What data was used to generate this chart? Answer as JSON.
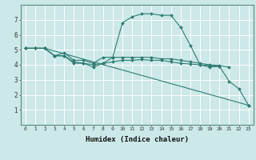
{
  "xlabel": "Humidex (Indice chaleur)",
  "bg_color": "#cce8e8",
  "plot_bg_color": "#cce8e8",
  "grid_color": "#ffffff",
  "line_color": "#2e7d72",
  "spine_color": "#5a8a80",
  "xlim": [
    -0.5,
    23.5
  ],
  "ylim": [
    0,
    8
  ],
  "xticks": [
    0,
    1,
    2,
    3,
    4,
    5,
    6,
    7,
    8,
    9,
    10,
    11,
    12,
    13,
    14,
    15,
    16,
    17,
    18,
    19,
    20,
    21,
    22,
    23
  ],
  "yticks": [
    1,
    2,
    3,
    4,
    5,
    6,
    7
  ],
  "line_configs": [
    {
      "x": [
        0,
        1,
        2,
        3,
        4,
        5,
        6,
        7,
        8,
        9,
        10,
        11,
        12,
        13,
        14,
        15,
        16,
        17,
        18,
        19,
        20,
        21,
        22,
        23
      ],
      "y": [
        5.1,
        5.1,
        5.1,
        4.6,
        4.6,
        4.1,
        4.1,
        3.85,
        4.1,
        4.5,
        6.8,
        7.2,
        7.4,
        7.4,
        7.3,
        7.3,
        6.5,
        5.3,
        4.0,
        3.85,
        3.9,
        2.9,
        2.4,
        1.3
      ]
    },
    {
      "x": [
        0,
        1,
        2,
        3,
        4,
        5,
        6,
        7,
        8,
        9,
        10,
        11,
        12,
        13,
        14,
        15,
        16,
        17,
        18,
        19,
        20,
        21
      ],
      "y": [
        5.1,
        5.1,
        5.1,
        4.6,
        4.8,
        4.3,
        4.3,
        4.1,
        4.5,
        4.5,
        4.5,
        4.5,
        4.5,
        4.5,
        4.4,
        4.4,
        4.3,
        4.2,
        4.1,
        4.0,
        3.95,
        3.85
      ]
    },
    {
      "x": [
        0,
        1,
        2,
        3,
        4,
        5,
        6,
        7,
        8,
        9,
        10,
        11,
        12,
        13,
        14,
        15,
        16,
        17,
        18,
        19,
        20
      ],
      "y": [
        5.1,
        5.1,
        5.1,
        4.6,
        4.6,
        4.2,
        4.1,
        4.0,
        4.1,
        4.2,
        4.3,
        4.3,
        4.35,
        4.3,
        4.3,
        4.2,
        4.1,
        4.05,
        4.0,
        3.95,
        3.9
      ]
    },
    {
      "x": [
        0,
        1,
        2,
        23
      ],
      "y": [
        5.1,
        5.1,
        5.1,
        1.3
      ]
    }
  ]
}
